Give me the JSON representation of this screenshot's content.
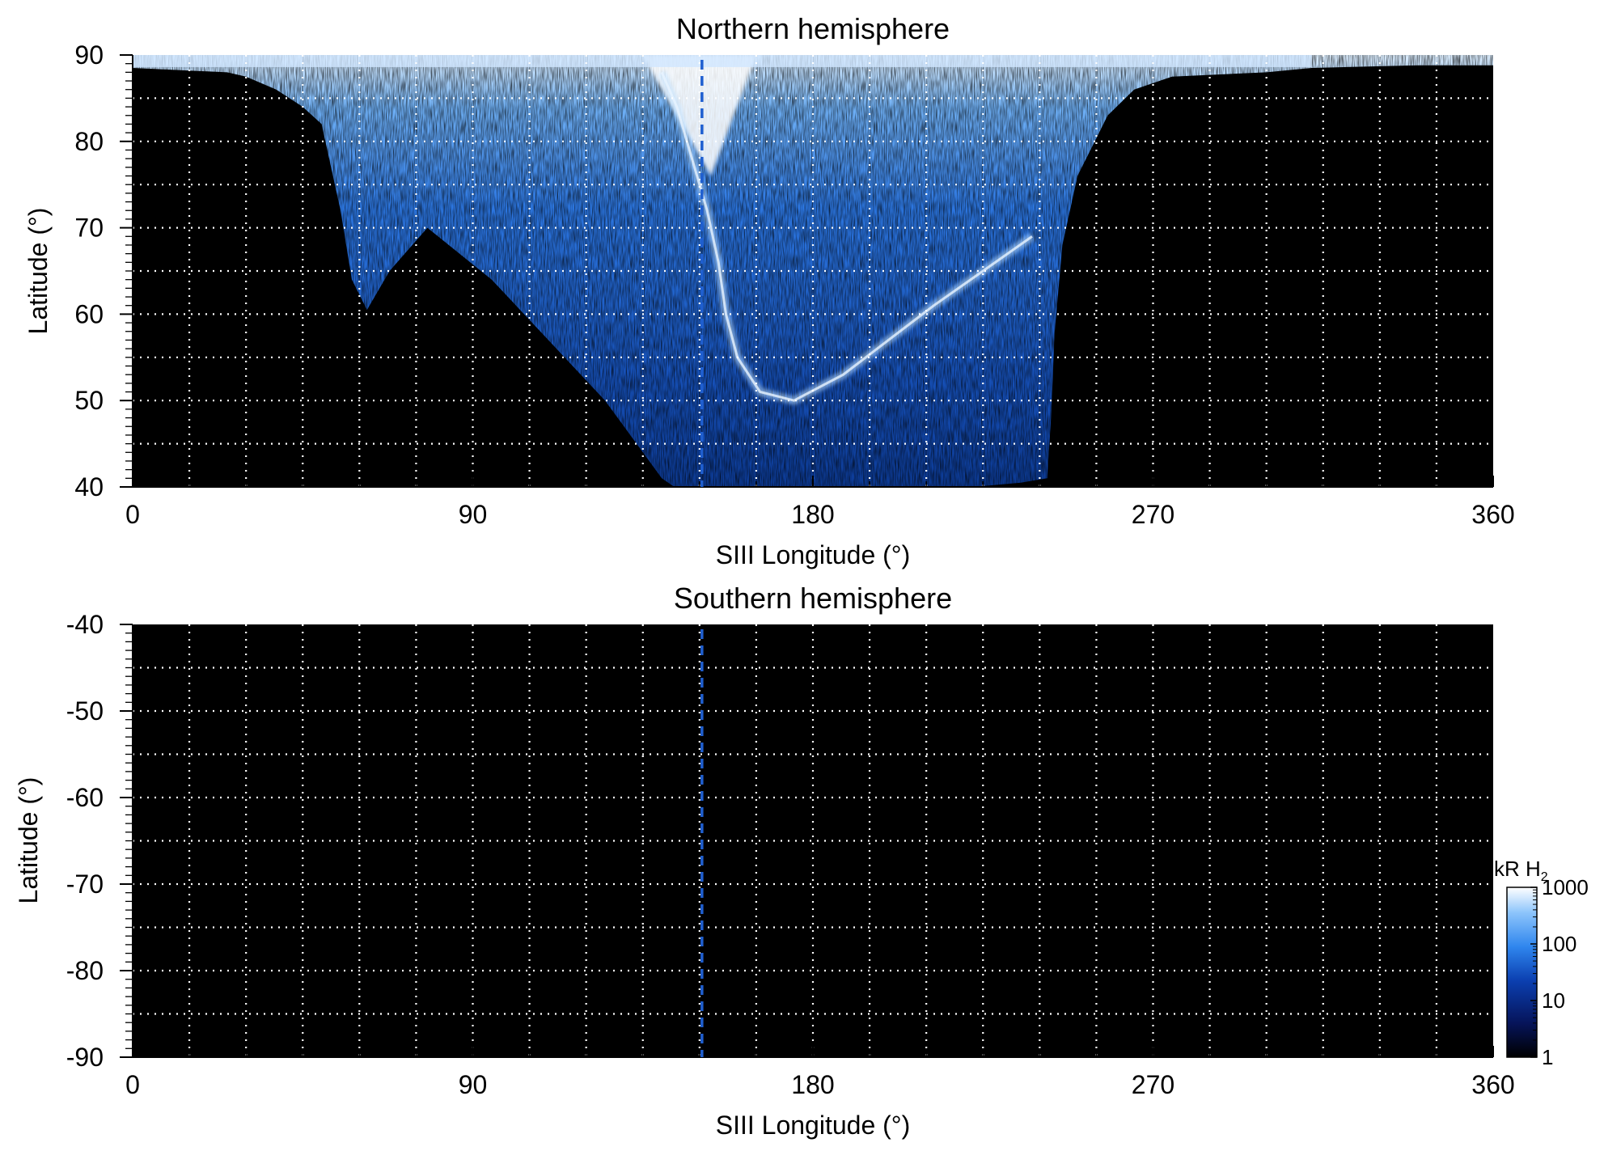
{
  "chart_data": [
    {
      "type": "heatmap",
      "title": "Northern hemisphere",
      "xlabel": "SIII Longitude (°)",
      "ylabel": "Latitude (°)",
      "xlim": [
        0,
        360
      ],
      "ylim": [
        40,
        90
      ],
      "xticks": [
        0,
        90,
        180,
        270,
        360
      ],
      "yticks": [
        40,
        50,
        60,
        70,
        80,
        90
      ],
      "x_minor_step": 15,
      "y_minor_step": 5,
      "grid": true,
      "reference_longitude": 150,
      "reference_line_color": "#1f5fd0",
      "emission_region": {
        "lon_range": [
          28,
          312
        ],
        "equatorward_boundary": [
          [
            0,
            88.5
          ],
          [
            25,
            88
          ],
          [
            30,
            87.5
          ],
          [
            38,
            86
          ],
          [
            45,
            84
          ],
          [
            50,
            82
          ],
          [
            52,
            78
          ],
          [
            55,
            72
          ],
          [
            58,
            64
          ],
          [
            62,
            60.5
          ],
          [
            68,
            65
          ],
          [
            78,
            70
          ],
          [
            95,
            64
          ],
          [
            110,
            57
          ],
          [
            125,
            50
          ],
          [
            135,
            44
          ],
          [
            140,
            41
          ],
          [
            145,
            39.5
          ],
          [
            210,
            39.5
          ],
          [
            235,
            40.5
          ],
          [
            242,
            41
          ],
          [
            243,
            48
          ],
          [
            244,
            58
          ],
          [
            246,
            68
          ],
          [
            250,
            76
          ],
          [
            258,
            83
          ],
          [
            265,
            86
          ],
          [
            275,
            87.5
          ],
          [
            300,
            88
          ],
          [
            312,
            88.5
          ],
          [
            340,
            88.8
          ],
          [
            360,
            88.8
          ]
        ],
        "main_oval": [
          [
            140,
            88
          ],
          [
            144,
            84
          ],
          [
            148,
            78
          ],
          [
            152,
            72
          ],
          [
            155,
            66
          ],
          [
            157,
            60
          ],
          [
            160,
            55
          ],
          [
            166,
            51
          ],
          [
            175,
            50
          ],
          [
            188,
            53
          ],
          [
            200,
            57
          ],
          [
            212,
            61
          ],
          [
            225,
            65
          ],
          [
            238,
            69
          ]
        ],
        "polar_bright_patch": {
          "lon_range": [
            135,
            165
          ],
          "lat_range": [
            82,
            90
          ]
        }
      }
    },
    {
      "type": "heatmap",
      "title": "Southern hemisphere",
      "xlabel": "SIII Longitude (°)",
      "ylabel": "Latitude (°)",
      "xlim": [
        0,
        360
      ],
      "ylim": [
        -90,
        -40
      ],
      "xticks": [
        0,
        90,
        180,
        270,
        360
      ],
      "yticks": [
        -40,
        -50,
        -60,
        -70,
        -80,
        -90
      ],
      "x_minor_step": 15,
      "y_minor_step": 5,
      "grid": true,
      "reference_longitude": 150,
      "reference_line_color": "#1f5fd0",
      "emission_region": null
    }
  ],
  "colorbar": {
    "label": "kR H",
    "label_sub": "2",
    "scale": "log",
    "ticks": [
      1,
      10,
      100,
      1000
    ],
    "colors": [
      "#000000",
      "#06145a",
      "#0b3fb0",
      "#2f86ee",
      "#8cc4fb",
      "#ffffff"
    ]
  }
}
